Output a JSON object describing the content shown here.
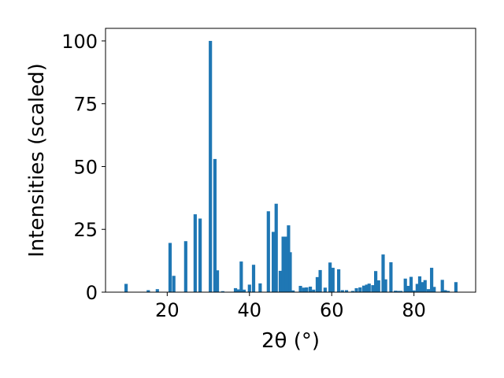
{
  "chart_data": {
    "type": "bar",
    "xlabel": "2θ (°)",
    "ylabel": "Intensities (scaled)",
    "xlim": [
      5,
      95
    ],
    "ylim": [
      0,
      105
    ],
    "xticks": [
      20,
      40,
      60,
      80
    ],
    "yticks": [
      0,
      25,
      50,
      75,
      100
    ],
    "grid": false,
    "bar_color": "#1f77b4",
    "bar_width": 0.8,
    "points": [
      {
        "x": 10.0,
        "y": 3.3
      },
      {
        "x": 15.4,
        "y": 0.8
      },
      {
        "x": 17.6,
        "y": 1.2
      },
      {
        "x": 20.7,
        "y": 19.6
      },
      {
        "x": 21.6,
        "y": 6.5
      },
      {
        "x": 24.5,
        "y": 20.3
      },
      {
        "x": 26.8,
        "y": 31.0
      },
      {
        "x": 28.0,
        "y": 29.3
      },
      {
        "x": 30.5,
        "y": 100.0
      },
      {
        "x": 31.6,
        "y": 53.0
      },
      {
        "x": 32.2,
        "y": 8.7
      },
      {
        "x": 33.5,
        "y": 0.4
      },
      {
        "x": 36.6,
        "y": 1.6
      },
      {
        "x": 37.3,
        "y": 1.1
      },
      {
        "x": 38.0,
        "y": 12.2
      },
      {
        "x": 38.7,
        "y": 1.0
      },
      {
        "x": 40.0,
        "y": 3.0
      },
      {
        "x": 41.0,
        "y": 10.9
      },
      {
        "x": 42.6,
        "y": 3.5
      },
      {
        "x": 44.6,
        "y": 32.2
      },
      {
        "x": 45.8,
        "y": 24.0
      },
      {
        "x": 46.5,
        "y": 35.2
      },
      {
        "x": 47.5,
        "y": 8.5
      },
      {
        "x": 48.2,
        "y": 22.1
      },
      {
        "x": 48.9,
        "y": 22.1
      },
      {
        "x": 49.5,
        "y": 26.6
      },
      {
        "x": 49.9,
        "y": 15.9
      },
      {
        "x": 50.6,
        "y": 0.7
      },
      {
        "x": 52.4,
        "y": 2.5
      },
      {
        "x": 53.2,
        "y": 1.8
      },
      {
        "x": 53.9,
        "y": 1.9
      },
      {
        "x": 54.8,
        "y": 2.2
      },
      {
        "x": 55.6,
        "y": 1.0
      },
      {
        "x": 56.5,
        "y": 6.0
      },
      {
        "x": 57.2,
        "y": 8.8
      },
      {
        "x": 58.4,
        "y": 1.8
      },
      {
        "x": 59.6,
        "y": 11.8
      },
      {
        "x": 60.3,
        "y": 9.7
      },
      {
        "x": 61.7,
        "y": 9.1
      },
      {
        "x": 62.6,
        "y": 0.8
      },
      {
        "x": 63.6,
        "y": 0.8
      },
      {
        "x": 65.1,
        "y": 0.5
      },
      {
        "x": 66.0,
        "y": 1.6
      },
      {
        "x": 66.9,
        "y": 1.9
      },
      {
        "x": 67.8,
        "y": 2.6
      },
      {
        "x": 68.5,
        "y": 3.0
      },
      {
        "x": 69.1,
        "y": 3.4
      },
      {
        "x": 70.0,
        "y": 2.8
      },
      {
        "x": 70.7,
        "y": 8.4
      },
      {
        "x": 71.4,
        "y": 4.7
      },
      {
        "x": 72.5,
        "y": 15.0
      },
      {
        "x": 73.1,
        "y": 5.1
      },
      {
        "x": 74.4,
        "y": 11.9
      },
      {
        "x": 75.5,
        "y": 0.6
      },
      {
        "x": 76.1,
        "y": 0.5
      },
      {
        "x": 76.8,
        "y": 0.5
      },
      {
        "x": 77.9,
        "y": 5.4
      },
      {
        "x": 78.6,
        "y": 2.5
      },
      {
        "x": 79.3,
        "y": 6.1
      },
      {
        "x": 80.0,
        "y": 0.7
      },
      {
        "x": 80.8,
        "y": 3.3
      },
      {
        "x": 81.4,
        "y": 6.3
      },
      {
        "x": 82.1,
        "y": 4.0
      },
      {
        "x": 82.7,
        "y": 4.8
      },
      {
        "x": 83.5,
        "y": 1.2
      },
      {
        "x": 84.3,
        "y": 9.7
      },
      {
        "x": 84.9,
        "y": 2.1
      },
      {
        "x": 86.9,
        "y": 4.9
      },
      {
        "x": 87.6,
        "y": 0.8
      },
      {
        "x": 88.3,
        "y": 0.5
      },
      {
        "x": 90.2,
        "y": 4.0
      }
    ]
  }
}
